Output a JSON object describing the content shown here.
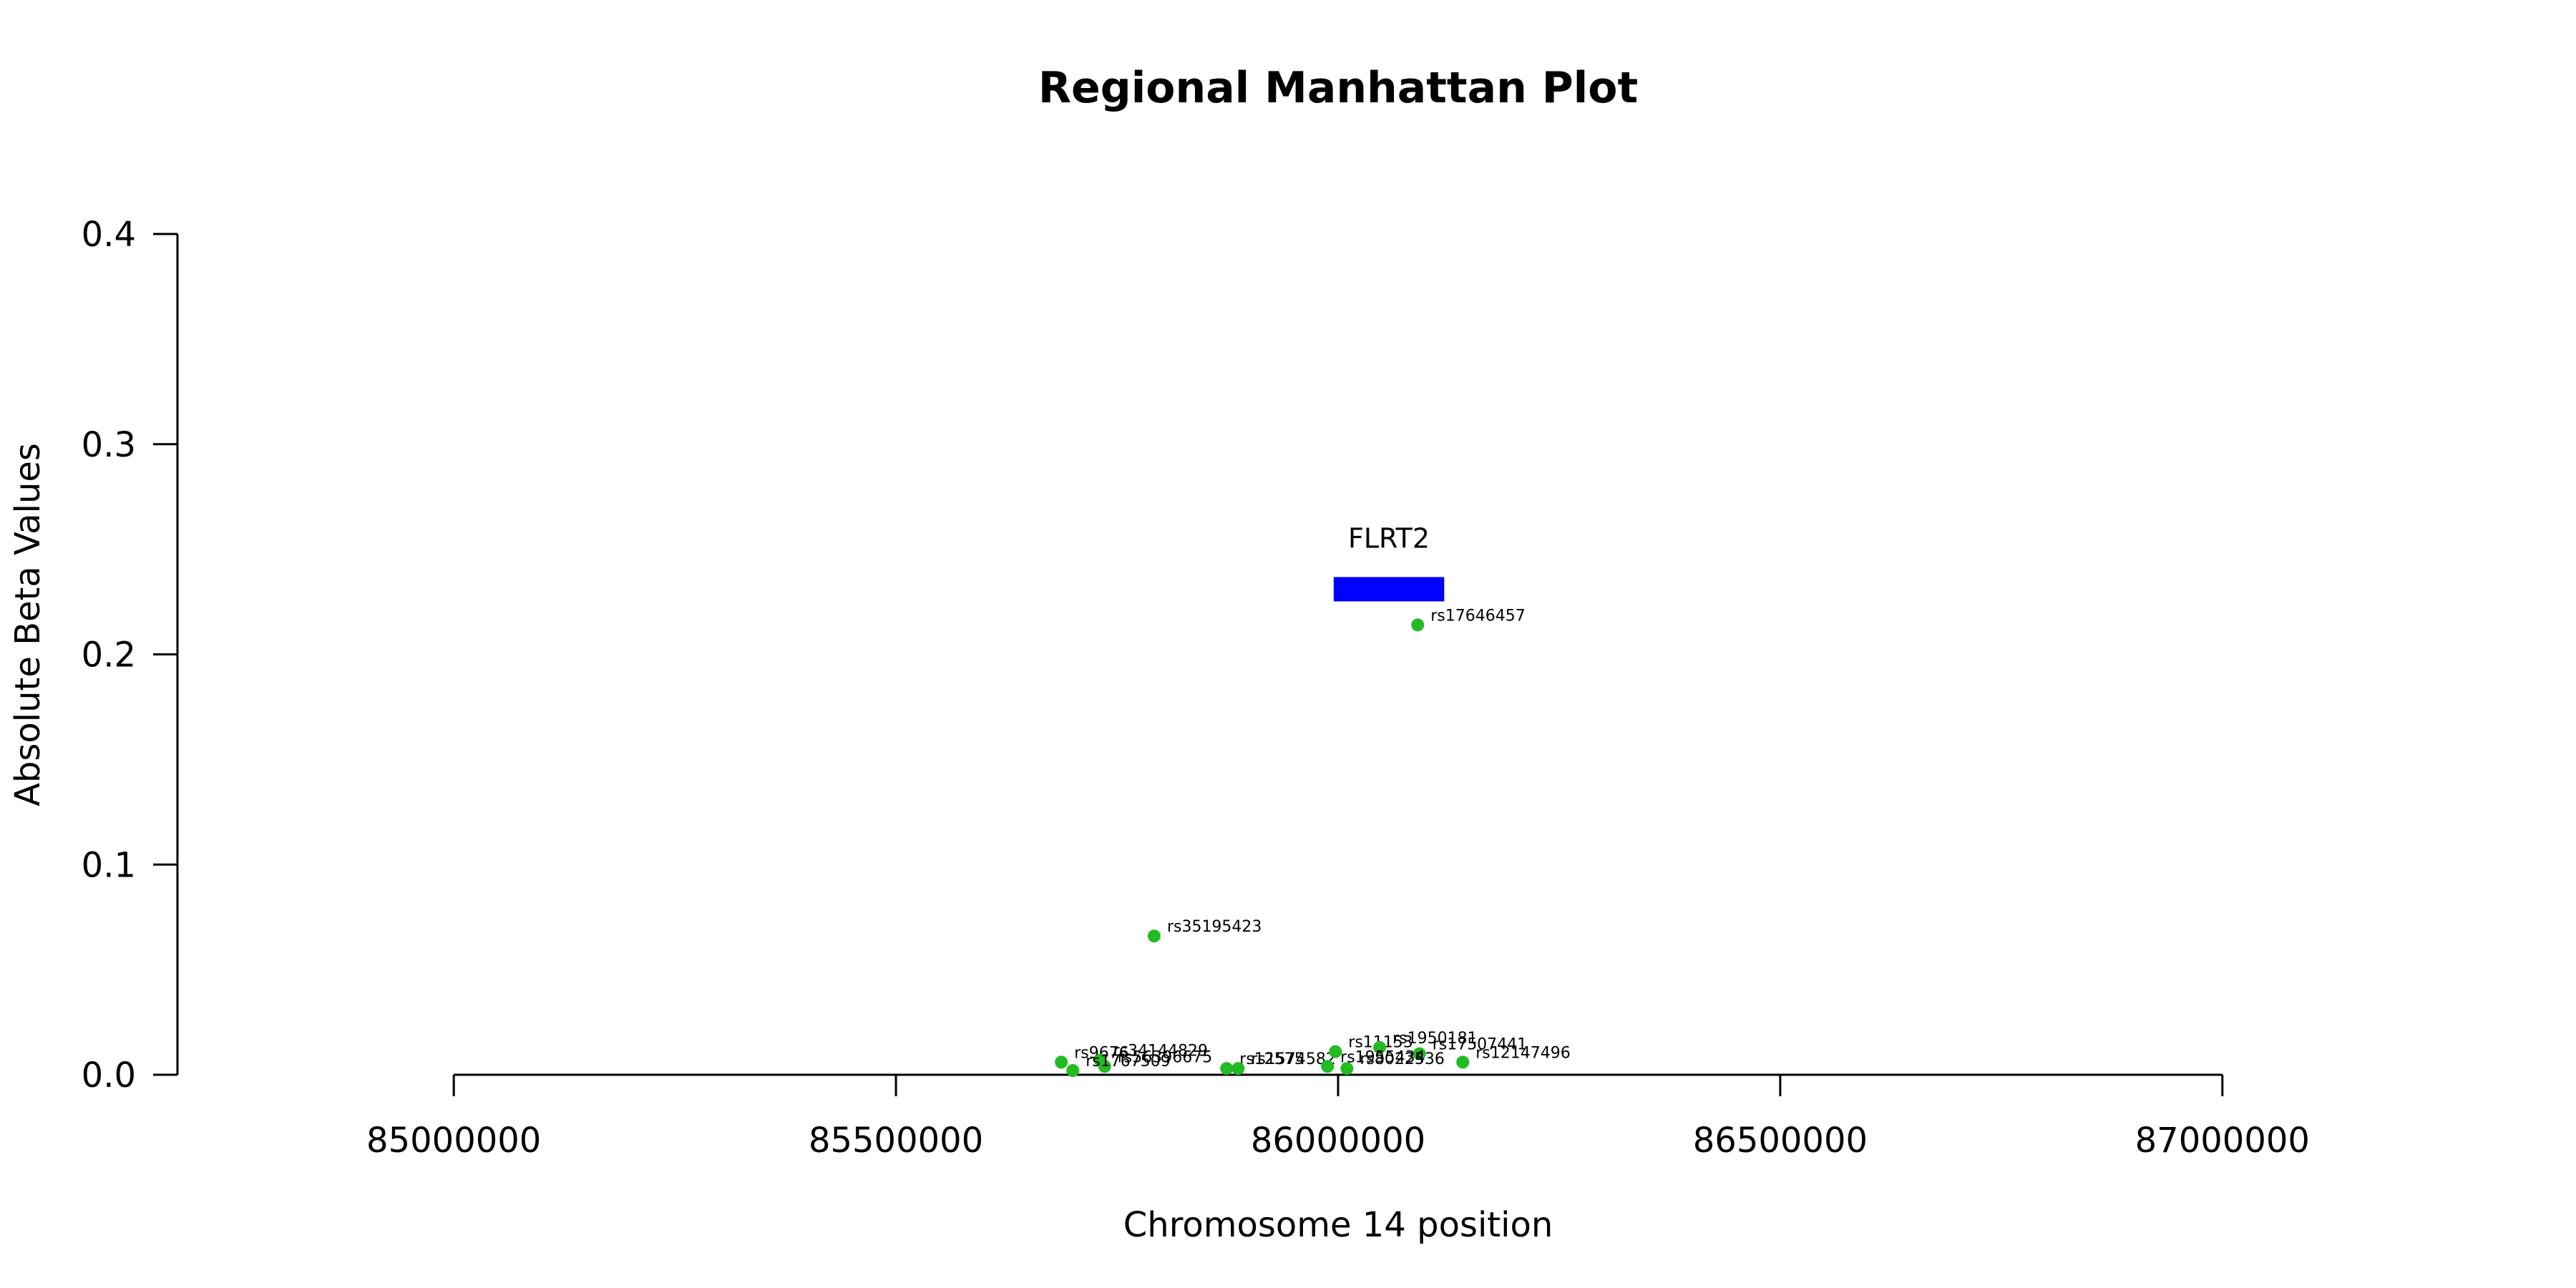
{
  "chart_data": {
    "type": "scatter",
    "title": "Regional Manhattan Plot",
    "xlabel": "Chromosome 14 position",
    "ylabel": "Absolute Beta Values",
    "xlim": [
      84687500,
      87312500
    ],
    "ylim": [
      0,
      0.4
    ],
    "x_ticks": [
      85000000,
      85500000,
      86000000,
      86500000,
      87000000
    ],
    "y_ticks": [
      0.0,
      0.1,
      0.2,
      0.3,
      0.4
    ],
    "x_tick_labels": [
      "85000000",
      "85500000",
      "86000000",
      "86500000",
      "87000000"
    ],
    "y_tick_labels": [
      "0.0",
      "0.1",
      "0.2",
      "0.3",
      "0.4"
    ],
    "point_color": "#22BB22",
    "gene_color": "#0000FF",
    "genes": [
      {
        "name": "FLRT2",
        "start": 85995000,
        "end": 86120000,
        "y": 0.231
      }
    ],
    "points": [
      {
        "label": "rs17646457",
        "x": 86090000,
        "y": 0.214
      },
      {
        "label": "rs35195423",
        "x": 85792000,
        "y": 0.066
      },
      {
        "label": "rs9676",
        "x": 85687000,
        "y": 0.006
      },
      {
        "label": "rs34144829",
        "x": 85731000,
        "y": 0.007
      },
      {
        "label": "rs56396675",
        "x": 85736000,
        "y": 0.004
      },
      {
        "label": "rs1767509",
        "x": 85700000,
        "y": 0.002
      },
      {
        "label": "rs12575",
        "x": 85874000,
        "y": 0.003
      },
      {
        "label": "rs1574582",
        "x": 85887000,
        "y": 0.003
      },
      {
        "label": "rs11153",
        "x": 85997000,
        "y": 0.011
      },
      {
        "label": "rs1950181",
        "x": 86047000,
        "y": 0.013
      },
      {
        "label": "rs17507441",
        "x": 86092000,
        "y": 0.01
      },
      {
        "label": "rs12147496",
        "x": 86141000,
        "y": 0.006
      },
      {
        "label": "rs1955434",
        "x": 85988000,
        "y": 0.004
      },
      {
        "label": "rs8022536",
        "x": 86010000,
        "y": 0.003
      }
    ]
  }
}
